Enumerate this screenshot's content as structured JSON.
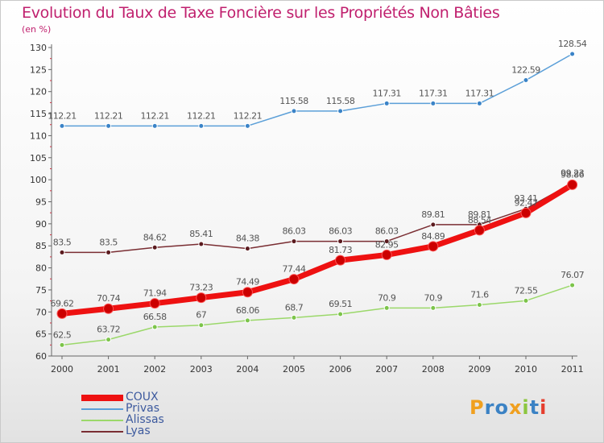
{
  "title": "Evolution du Taux de Taxe Foncière sur les Propriétés Non Bâties",
  "subtitle": "(en %)",
  "logo": {
    "text": "Proxiti",
    "letter_colors": [
      "#f0a020",
      "#3b82c4",
      "#3b82c4",
      "#f0a020",
      "#8cc63f",
      "#3b82c4",
      "#e53e2e"
    ]
  },
  "chart_data": {
    "type": "line",
    "title": "Evolution du Taux de Taxe Foncière sur les Propriétés Non Bâties",
    "ylabel": "(en %)",
    "xlabel": "",
    "x": [
      "2000",
      "2001",
      "2002",
      "2003",
      "2004",
      "2005",
      "2006",
      "2007",
      "2008",
      "2009",
      "2010",
      "2011"
    ],
    "yticks": [
      "60",
      "65",
      "70",
      "75",
      "80",
      "85",
      "90",
      "95",
      "100",
      "105",
      "110",
      "115",
      "120",
      "125",
      "130"
    ],
    "ylim": [
      60,
      130
    ],
    "grid": false,
    "legend_position": "bottom-left",
    "series": [
      {
        "name": "Privas",
        "color": "#5b9fd8",
        "marker": "#3a83c7",
        "values": [
          112.21,
          112.21,
          112.21,
          112.21,
          112.21,
          115.58,
          115.58,
          117.31,
          117.31,
          117.31,
          122.59,
          128.54
        ],
        "labels": [
          "112.21",
          "112.21",
          "112.21",
          "112.21",
          "112.21",
          "115.58",
          "115.58",
          "117.31",
          "117.31",
          "117.31",
          "122.59",
          "128.54"
        ]
      },
      {
        "name": "Lyas",
        "color": "#7a2e33",
        "marker": "#5a1a1e",
        "values": [
          83.5,
          83.5,
          84.62,
          85.41,
          84.38,
          86.03,
          86.03,
          86.03,
          89.81,
          89.81,
          93.41,
          99.23
        ],
        "labels": [
          "83.5",
          "83.5",
          "84.62",
          "85.41",
          "84.38",
          "86.03",
          "86.03",
          "86.03",
          "89.81",
          "89.81",
          "93.41",
          "99.23"
        ]
      },
      {
        "name": "Alissas",
        "color": "#9bd86a",
        "marker": "#7cc44a",
        "values": [
          62.5,
          63.72,
          66.58,
          67,
          68.06,
          68.7,
          69.51,
          70.9,
          70.9,
          71.6,
          72.55,
          76.07
        ],
        "labels": [
          "62.5",
          "63.72",
          "66.58",
          "67",
          "68.06",
          "68.7",
          "69.51",
          "70.9",
          "70.9",
          "71.6",
          "72.55",
          "76.07"
        ]
      },
      {
        "name": "COUX",
        "color": "#ee1111",
        "marker": "#cc0000",
        "values": [
          69.62,
          70.74,
          71.94,
          73.23,
          74.49,
          77.44,
          81.73,
          82.95,
          84.89,
          88.54,
          92.47,
          98.86
        ],
        "labels": [
          "69.62",
          "70.74",
          "71.94",
          "73.23",
          "74.49",
          "77.44",
          "81.73",
          "82.95",
          "84.89",
          "88.54",
          "92.47",
          "98.86"
        ]
      }
    ],
    "legend_order": [
      "COUX",
      "Privas",
      "Alissas",
      "Lyas"
    ]
  }
}
